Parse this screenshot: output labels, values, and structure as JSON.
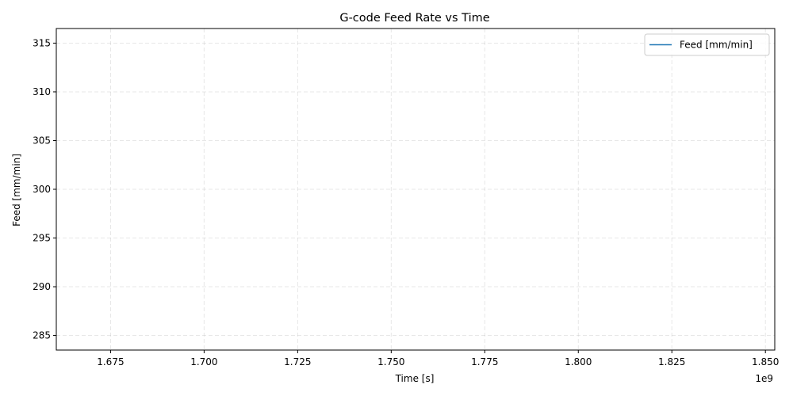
{
  "chart_data": {
    "type": "line",
    "title": "G-code Feed Rate vs Time",
    "xlabel": "Time [s]",
    "ylabel": "Feed [mm/min]",
    "x_offset_label": "1e9",
    "xlim": [
      1.6605,
      1.8525
    ],
    "ylim": [
      283.5,
      316.5
    ],
    "x_ticks": [
      1.675,
      1.7,
      1.725,
      1.75,
      1.775,
      1.8,
      1.825,
      1.85
    ],
    "x_tick_labels": [
      "1.675",
      "1.700",
      "1.725",
      "1.750",
      "1.775",
      "1.800",
      "1.825",
      "1.850"
    ],
    "y_ticks": [
      285,
      290,
      295,
      300,
      305,
      310,
      315
    ],
    "y_tick_labels": [
      "285",
      "290",
      "295",
      "300",
      "305",
      "310",
      "315"
    ],
    "grid": true,
    "legend_position": "top-right",
    "series": [
      {
        "name": "Feed [mm/min]",
        "color": "#1f77b4",
        "x": [],
        "y": []
      }
    ]
  }
}
